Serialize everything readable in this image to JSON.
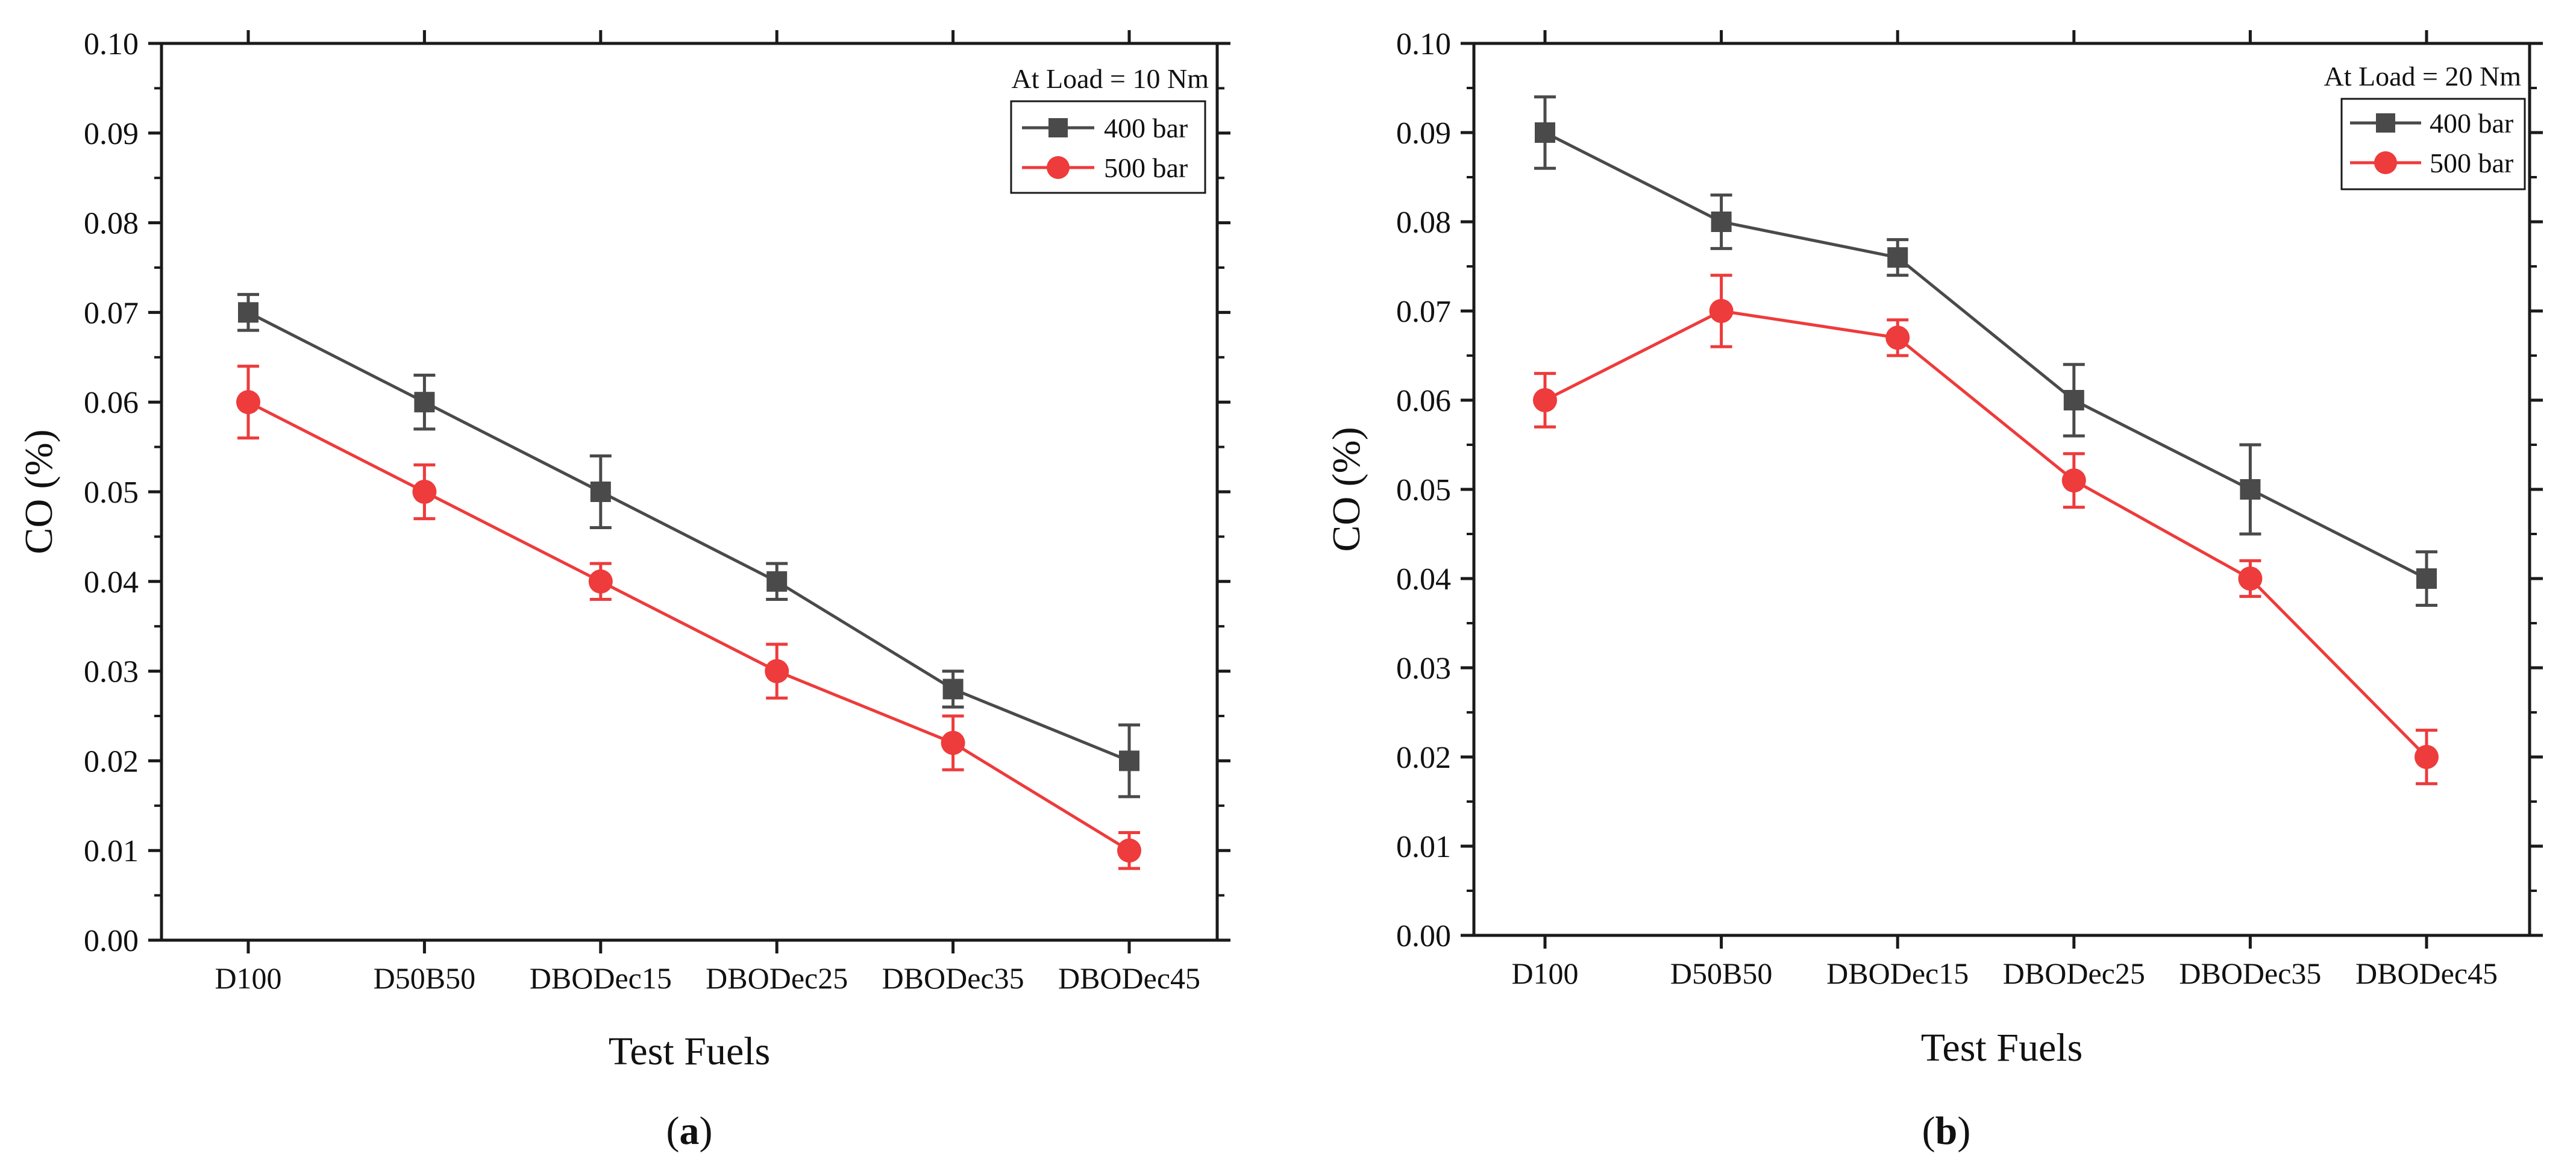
{
  "colors": {
    "series_400": "#4a4a4a",
    "series_500": "#ee3b3b",
    "axis": "#1a1a1a"
  },
  "chart_data": [
    {
      "panel_label": "a",
      "type": "line",
      "legend_title": "At Load = 10 Nm",
      "legend_position": "top-right",
      "xlabel": "Test Fuels",
      "ylabel": "CO (%)",
      "ylim": [
        0,
        0.1
      ],
      "yticks": [
        "0.00",
        "0.01",
        "0.02",
        "0.03",
        "0.04",
        "0.05",
        "0.06",
        "0.07",
        "0.08",
        "0.09",
        "0.10"
      ],
      "grid": false,
      "categories": [
        "D100",
        "D50B50",
        "DBODec15",
        "DBODec25",
        "DBODec35",
        "DBODec45"
      ],
      "series": [
        {
          "name": "400 bar",
          "marker": "square",
          "color": "#4a4a4a",
          "values": [
            0.07,
            0.06,
            0.05,
            0.04,
            0.028,
            0.02
          ],
          "errors": [
            0.002,
            0.003,
            0.004,
            0.002,
            0.002,
            0.004
          ]
        },
        {
          "name": "500 bar",
          "marker": "circle",
          "color": "#ee3b3b",
          "values": [
            0.06,
            0.05,
            0.04,
            0.03,
            0.022,
            0.01
          ],
          "errors": [
            0.004,
            0.003,
            0.002,
            0.003,
            0.003,
            0.002
          ]
        }
      ]
    },
    {
      "panel_label": "b",
      "type": "line",
      "legend_title": "At Load = 20 Nm",
      "legend_position": "top-right",
      "xlabel": "Test Fuels",
      "ylabel": "CO (%)",
      "ylim": [
        0,
        0.1
      ],
      "yticks": [
        "0.00",
        "0.01",
        "0.02",
        "0.03",
        "0.04",
        "0.05",
        "0.06",
        "0.07",
        "0.08",
        "0.09",
        "0.10"
      ],
      "grid": false,
      "categories": [
        "D100",
        "D50B50",
        "DBODec15",
        "DBODec25",
        "DBODec35",
        "DBODec45"
      ],
      "series": [
        {
          "name": "400 bar",
          "marker": "square",
          "color": "#4a4a4a",
          "values": [
            0.09,
            0.08,
            0.076,
            0.06,
            0.05,
            0.04
          ],
          "errors": [
            0.004,
            0.003,
            0.002,
            0.004,
            0.005,
            0.003
          ]
        },
        {
          "name": "500 bar",
          "marker": "circle",
          "color": "#ee3b3b",
          "values": [
            0.06,
            0.07,
            0.067,
            0.051,
            0.04,
            0.02
          ],
          "errors": [
            0.003,
            0.004,
            0.002,
            0.003,
            0.002,
            0.003
          ]
        }
      ]
    }
  ]
}
